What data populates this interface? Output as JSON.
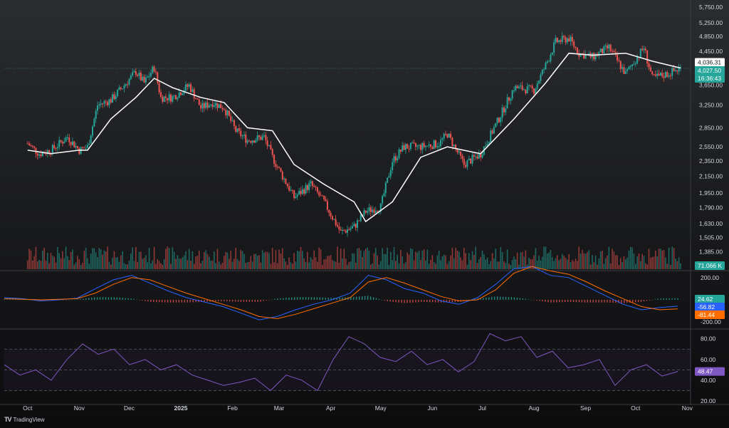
{
  "branding": {
    "logo_text": "TradingView"
  },
  "colors": {
    "up": "#26a69a",
    "down": "#ef5350",
    "ma": "#ffffff",
    "macd": "#2962ff",
    "signal": "#ff6d00",
    "rsi": "#7e57c2",
    "gridline": "#5a5d66"
  },
  "chart_data": [
    {
      "type": "candlestick",
      "panel": "price",
      "y_axis_ticks": [
        "5,750.00",
        "5,250.00",
        "4,850.00",
        "4,450.00",
        "3,650.00",
        "3,250.00",
        "2,850.00",
        "2,550.00",
        "2,350.00",
        "2,150.00",
        "1,950.00",
        "1,790.00",
        "1,630.00",
        "1,505.00",
        "1,385.00",
        "1,275.00"
      ],
      "y_scale": "log",
      "ylim": [
        1250,
        5900
      ],
      "x_axis_ticks": [
        "Oct",
        "Nov",
        "Dec",
        "2025",
        "Feb",
        "Mar",
        "Apr",
        "May",
        "Jun",
        "Jul",
        "Aug",
        "Sep",
        "Oct",
        "Nov"
      ],
      "price_path": [
        {
          "x": "2024-10-01",
          "y": 2600
        },
        {
          "x": "2024-10-08",
          "y": 2450
        },
        {
          "x": "2024-10-15",
          "y": 2500
        },
        {
          "x": "2024-10-25",
          "y": 2700
        },
        {
          "x": "2024-11-01",
          "y": 2500
        },
        {
          "x": "2024-11-06",
          "y": 2550
        },
        {
          "x": "2024-11-12",
          "y": 3250
        },
        {
          "x": "2024-11-20",
          "y": 3350
        },
        {
          "x": "2024-11-28",
          "y": 3650
        },
        {
          "x": "2024-12-05",
          "y": 3950
        },
        {
          "x": "2024-12-10",
          "y": 3700
        },
        {
          "x": "2024-12-16",
          "y": 4050
        },
        {
          "x": "2024-12-20",
          "y": 3400
        },
        {
          "x": "2024-12-27",
          "y": 3400
        },
        {
          "x": "2025-01-06",
          "y": 3650
        },
        {
          "x": "2025-01-13",
          "y": 3200
        },
        {
          "x": "2025-01-20",
          "y": 3300
        },
        {
          "x": "2025-01-27",
          "y": 3200
        },
        {
          "x": "2025-02-03",
          "y": 2800
        },
        {
          "x": "2025-02-10",
          "y": 2650
        },
        {
          "x": "2025-02-20",
          "y": 2700
        },
        {
          "x": "2025-02-25",
          "y": 2400
        },
        {
          "x": "2025-03-03",
          "y": 2150
        },
        {
          "x": "2025-03-10",
          "y": 1900
        },
        {
          "x": "2025-03-20",
          "y": 2050
        },
        {
          "x": "2025-03-28",
          "y": 1850
        },
        {
          "x": "2025-04-07",
          "y": 1550
        },
        {
          "x": "2025-04-15",
          "y": 1600
        },
        {
          "x": "2025-04-22",
          "y": 1750
        },
        {
          "x": "2025-05-01",
          "y": 1800
        },
        {
          "x": "2025-05-08",
          "y": 2350
        },
        {
          "x": "2025-05-15",
          "y": 2550
        },
        {
          "x": "2025-05-25",
          "y": 2550
        },
        {
          "x": "2025-06-05",
          "y": 2600
        },
        {
          "x": "2025-06-10",
          "y": 2750
        },
        {
          "x": "2025-06-20",
          "y": 2300
        },
        {
          "x": "2025-06-30",
          "y": 2450
        },
        {
          "x": "2025-07-10",
          "y": 2950
        },
        {
          "x": "2025-07-20",
          "y": 3600
        },
        {
          "x": "2025-08-01",
          "y": 3550
        },
        {
          "x": "2025-08-08",
          "y": 4100
        },
        {
          "x": "2025-08-14",
          "y": 4700
        },
        {
          "x": "2025-08-22",
          "y": 4800
        },
        {
          "x": "2025-08-28",
          "y": 4400
        },
        {
          "x": "2025-09-05",
          "y": 4300
        },
        {
          "x": "2025-09-15",
          "y": 4550
        },
        {
          "x": "2025-09-25",
          "y": 3900
        },
        {
          "x": "2025-10-06",
          "y": 4550
        },
        {
          "x": "2025-10-11",
          "y": 3800
        },
        {
          "x": "2025-10-20",
          "y": 3900
        },
        {
          "x": "2025-10-28",
          "y": 4027.5
        }
      ],
      "moving_average_path": [
        {
          "x": "2024-10-01",
          "y": 2500
        },
        {
          "x": "2024-10-15",
          "y": 2450
        },
        {
          "x": "2024-11-01",
          "y": 2500
        },
        {
          "x": "2024-11-06",
          "y": 2500
        },
        {
          "x": "2024-11-20",
          "y": 3000
        },
        {
          "x": "2024-12-05",
          "y": 3400
        },
        {
          "x": "2024-12-16",
          "y": 3800
        },
        {
          "x": "2024-12-27",
          "y": 3600
        },
        {
          "x": "2025-01-13",
          "y": 3400
        },
        {
          "x": "2025-01-27",
          "y": 3300
        },
        {
          "x": "2025-02-10",
          "y": 2850
        },
        {
          "x": "2025-02-25",
          "y": 2800
        },
        {
          "x": "2025-03-10",
          "y": 2300
        },
        {
          "x": "2025-03-28",
          "y": 2050
        },
        {
          "x": "2025-04-15",
          "y": 1850
        },
        {
          "x": "2025-04-22",
          "y": 1650
        },
        {
          "x": "2025-05-08",
          "y": 1850
        },
        {
          "x": "2025-05-25",
          "y": 2400
        },
        {
          "x": "2025-06-10",
          "y": 2550
        },
        {
          "x": "2025-06-30",
          "y": 2450
        },
        {
          "x": "2025-07-20",
          "y": 3000
        },
        {
          "x": "2025-08-08",
          "y": 3700
        },
        {
          "x": "2025-08-22",
          "y": 4400
        },
        {
          "x": "2025-09-05",
          "y": 4350
        },
        {
          "x": "2025-09-25",
          "y": 4400
        },
        {
          "x": "2025-10-11",
          "y": 4200
        },
        {
          "x": "2025-10-28",
          "y": 4036.31
        }
      ],
      "last_values": {
        "ma": "4,036.31",
        "price": "4,027.50",
        "countdown": "16:36:43",
        "volume": "71.066 K"
      }
    },
    {
      "type": "line",
      "panel": "macd",
      "y_axis_ticks": [
        "200.00",
        "-200.00"
      ],
      "ylim": [
        -250,
        250
      ],
      "series": [
        {
          "key": "macd",
          "values": [
            20,
            10,
            -10,
            0,
            15,
            100,
            180,
            220,
            150,
            80,
            20,
            -20,
            -60,
            -120,
            -180,
            -150,
            -90,
            -40,
            0,
            60,
            220,
            180,
            100,
            60,
            -10,
            -40,
            20,
            140,
            280,
            300,
            220,
            200,
            120,
            40,
            -40,
            -90,
            -70,
            -56.82
          ]
        },
        {
          "key": "signal",
          "values": [
            10,
            5,
            0,
            5,
            10,
            60,
            140,
            200,
            180,
            120,
            60,
            10,
            -40,
            -90,
            -150,
            -170,
            -130,
            -80,
            -30,
            20,
            160,
            200,
            150,
            90,
            30,
            -10,
            0,
            90,
            240,
            300,
            260,
            230,
            160,
            80,
            10,
            -60,
            -90,
            -81.44
          ]
        }
      ],
      "last_values": {
        "histogram": "24.62",
        "macd": "-56.82",
        "signal": "-81.44"
      }
    },
    {
      "type": "line",
      "panel": "rsi",
      "y_axis_ticks": [
        "80.00",
        "60.00",
        "40.00",
        "20.00"
      ],
      "ylim": [
        18,
        88
      ],
      "bands": [
        70,
        50,
        30
      ],
      "series": [
        {
          "key": "rsi",
          "values": [
            55,
            45,
            50,
            40,
            60,
            75,
            65,
            70,
            55,
            60,
            50,
            55,
            45,
            40,
            35,
            38,
            42,
            30,
            45,
            40,
            30,
            60,
            82,
            75,
            62,
            58,
            68,
            55,
            60,
            48,
            58,
            85,
            78,
            82,
            62,
            68,
            52,
            55,
            60,
            35,
            50,
            55,
            44,
            48.47
          ]
        }
      ],
      "last_values": {
        "rsi": "48.47"
      }
    }
  ]
}
